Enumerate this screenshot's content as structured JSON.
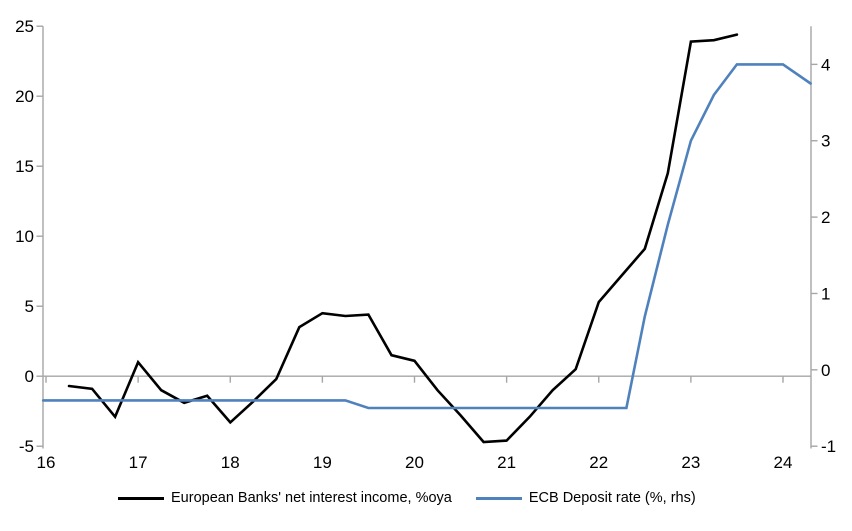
{
  "chart_data": {
    "type": "line",
    "title": "",
    "xlabel": "",
    "ylabel_left": "",
    "ylabel_right": "",
    "grid": "zero-line-only",
    "legend_position": "bottom",
    "x_axis": {
      "ticks": [
        16,
        17,
        18,
        19,
        20,
        21,
        22,
        23,
        24
      ],
      "min": 15.97,
      "max": 24.31
    },
    "left_axis": {
      "ticks": [
        25,
        20,
        15,
        10,
        5,
        0,
        -5
      ],
      "min": -5,
      "max": 25
    },
    "right_axis": {
      "ticks": [
        4,
        3,
        2,
        1,
        0,
        -1
      ],
      "min": -1,
      "max": 4.5
    },
    "series": [
      {
        "name": "European Banks' net interest income, %oya",
        "axis": "left",
        "color": "#000000",
        "x": [
          16.25,
          16.5,
          16.75,
          17.0,
          17.25,
          17.5,
          17.75,
          18.0,
          18.25,
          18.5,
          18.75,
          19.0,
          19.25,
          19.5,
          19.75,
          20.0,
          20.25,
          20.5,
          20.75,
          21.0,
          21.25,
          21.5,
          21.75,
          22.0,
          22.25,
          22.5,
          22.75,
          23.0,
          23.25,
          23.5
        ],
        "values": [
          -0.7,
          -0.9,
          -2.9,
          1.0,
          -1.0,
          -1.9,
          -1.4,
          -3.3,
          -1.8,
          -0.2,
          3.5,
          4.5,
          4.3,
          4.4,
          1.5,
          1.1,
          -1.0,
          -2.8,
          -4.7,
          -4.6,
          -2.9,
          -1.0,
          0.5,
          5.3,
          7.2,
          9.1,
          14.5,
          23.9,
          24.0,
          24.4
        ]
      },
      {
        "name": "ECB Deposit rate (%, rhs)",
        "axis": "right",
        "color": "#4F81BD",
        "x": [
          15.97,
          19.25,
          19.5,
          22.3,
          22.5,
          22.75,
          23.0,
          23.25,
          23.5,
          24.0,
          24.3
        ],
        "values": [
          -0.4,
          -0.4,
          -0.5,
          -0.5,
          0.7,
          1.9,
          3.0,
          3.6,
          4.0,
          4.0,
          3.75
        ]
      }
    ]
  },
  "legend": {
    "series1": "European Banks' net interest income, %oya",
    "series2": "ECB Deposit rate (%, rhs)"
  },
  "colors": {
    "series1": "#000000",
    "series2": "#4F81BD",
    "axis": "#A6A6A6",
    "text": "#000000",
    "background": "#FFFFFF"
  }
}
